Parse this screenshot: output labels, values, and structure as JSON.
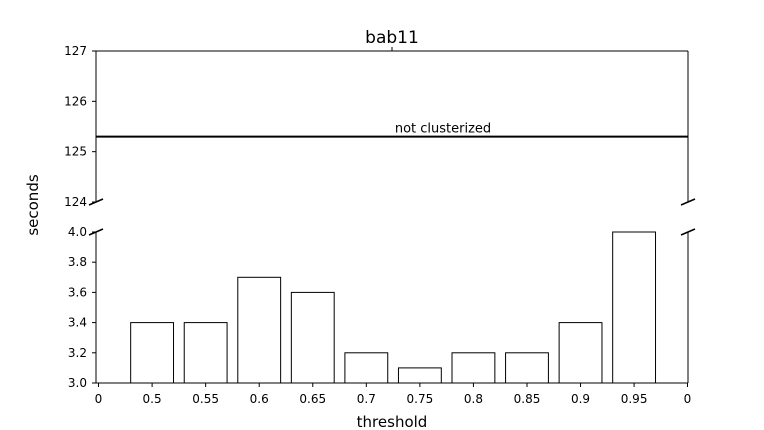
{
  "chart_data": {
    "type": "bar",
    "title": "bab11",
    "xlabel": "threshold",
    "ylabel": "seconds",
    "x_tick_labels": [
      "0",
      "0.5",
      "0.55",
      "0.6",
      "0.65",
      "0.7",
      "0.75",
      "0.8",
      "0.85",
      "0.9",
      "0.95",
      "0"
    ],
    "categories": [
      "0.5",
      "0.55",
      "0.6",
      "0.65",
      "0.7",
      "0.75",
      "0.8",
      "0.85",
      "0.9",
      "0.95"
    ],
    "values": [
      3.4,
      3.4,
      3.7,
      3.6,
      3.2,
      3.1,
      3.2,
      3.2,
      3.4,
      4.0
    ],
    "broken_y_axis": true,
    "upper_panel": {
      "ylim": [
        124,
        127
      ],
      "yticks": [
        "124",
        "125",
        "126",
        "127"
      ]
    },
    "lower_panel": {
      "ylim": [
        3.0,
        4.0
      ],
      "yticks": [
        "3.0",
        "3.2",
        "3.4",
        "3.6",
        "3.8",
        "4.0"
      ]
    },
    "reference_line": {
      "value": 125.3,
      "label": "not clusterized"
    },
    "bar_fill": "#ffffff",
    "bar_edge": "#000000",
    "grid": false
  }
}
